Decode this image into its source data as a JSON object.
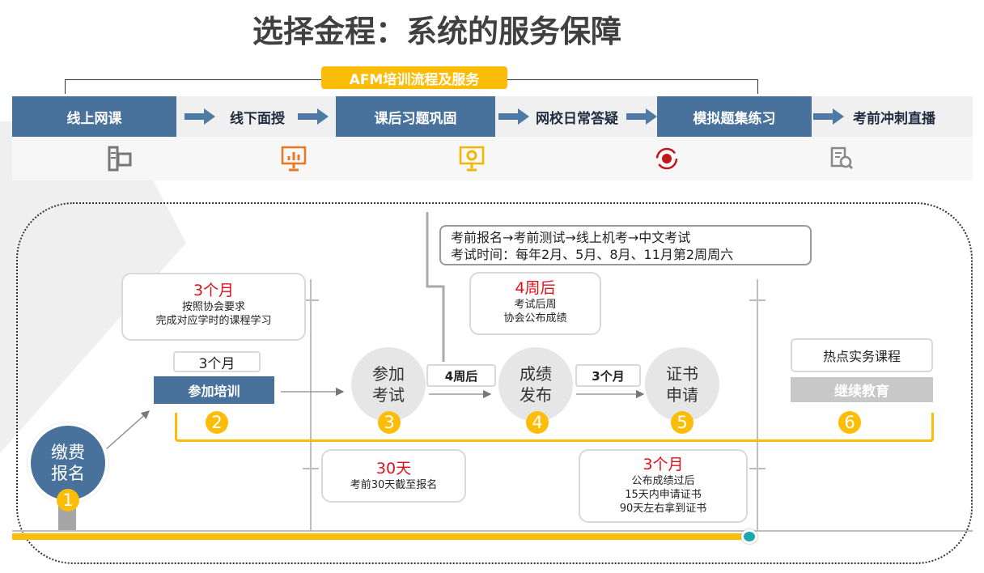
{
  "title": "选择金程：系统的服务保障",
  "service_label": "AFM培训流程及服务",
  "steps": [
    {
      "label": "线上网课",
      "icon": "computer-icon"
    },
    {
      "label": "线下面授",
      "icon": "presentation-chart-icon"
    },
    {
      "label": "课后习题巩固",
      "icon": "monitor-gear-icon"
    },
    {
      "label": "网校日常答疑",
      "icon": "refresh-gear-icon"
    },
    {
      "label": "模拟题集练习",
      "icon": "document-search-icon"
    },
    {
      "label": "考前冲刺直播"
    }
  ],
  "colors": {
    "blue": "#48729c",
    "yellow": "#fbbd08",
    "red": "#e0101a",
    "teal": "#1aa8b0"
  },
  "exam_info": {
    "line1": "考前报名→考前测试→线上机考→中文考试",
    "line2": "考试时间：每年2月、5月、8月、11月第2周周六"
  },
  "training_note": {
    "duration": "3个月",
    "line1": "按照协会要求",
    "line2": "完成对应学时的课程学习"
  },
  "result_note": {
    "duration": "4周后",
    "line1": "考试后周",
    "line2": "协会公布成绩"
  },
  "register_note": {
    "duration": "30天",
    "line1": "考前30天截至报名"
  },
  "cert_note": {
    "duration": "3个月",
    "line1": "公布成绩过后",
    "line2": "15天内申请证书",
    "line3": "90天左右拿到证书"
  },
  "flow": {
    "n1": {
      "label": "缴费报名",
      "num": "1"
    },
    "n2": {
      "duration": "3个月",
      "label": "参加培训",
      "num": "2"
    },
    "n3": {
      "label": "参加考试",
      "num": "3"
    },
    "gap34": "4周后",
    "n4": {
      "label": "成绩发布",
      "num": "4"
    },
    "gap45": "3个月",
    "n5": {
      "label": "证书申请",
      "num": "5"
    },
    "n6": {
      "top": "热点实务课程",
      "label": "继续教育",
      "num": "6"
    }
  }
}
